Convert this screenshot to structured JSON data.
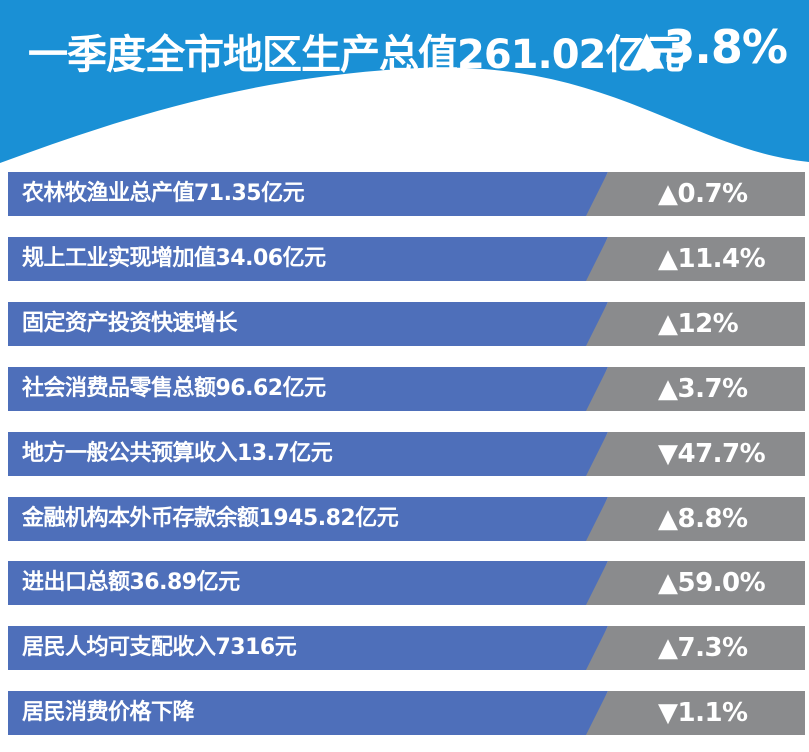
{
  "colors": {
    "header_blue": "#1a90d5",
    "label_blue": "#4e6fba",
    "value_gray": "#8a8b8d",
    "text": "#ffffff"
  },
  "chart_data": {
    "type": "table",
    "title": "一季度全市地区生产总值261.02亿元",
    "title_change": "▲3.8%",
    "rows": [
      {
        "label": "农林牧渔业总产值71.35亿元",
        "change": "▲0.7%"
      },
      {
        "label": "规上工业实现增加值34.06亿元",
        "change": "▲11.4%"
      },
      {
        "label": "固定资产投资快速增长",
        "change": "▲12%"
      },
      {
        "label": "社会消费品零售总额96.62亿元",
        "change": "▲3.7%"
      },
      {
        "label": "地方一般公共预算收入13.7亿元",
        "change": "▼47.7%"
      },
      {
        "label": "金融机构本外币存款余额1945.82亿元",
        "change": "▲8.8%"
      },
      {
        "label": "进出口总额36.89亿元",
        "change": "▲59.0%"
      },
      {
        "label": "居民人均可支配收入7316元",
        "change": "▲7.3%"
      },
      {
        "label": "居民消费价格下降",
        "change": "▼1.1%"
      }
    ]
  }
}
